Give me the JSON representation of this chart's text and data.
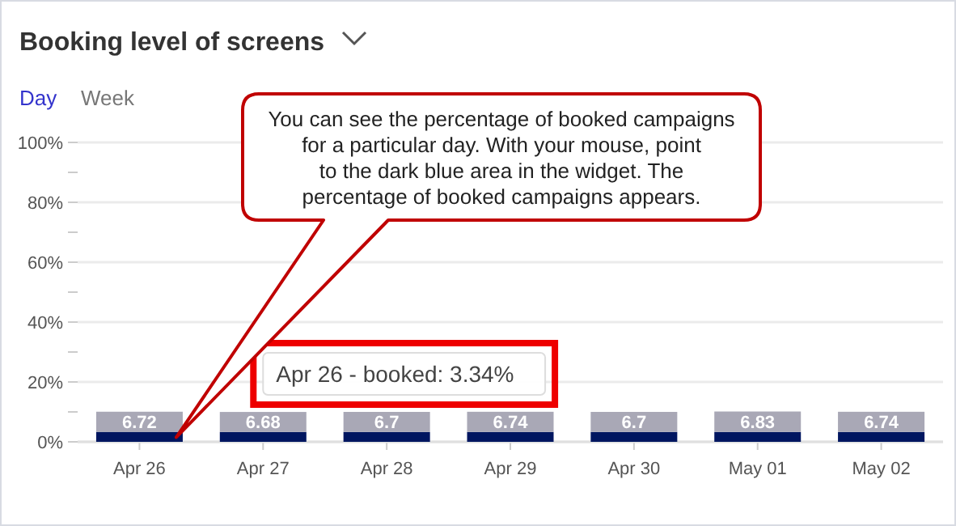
{
  "chart_data": {
    "type": "bar",
    "stacked": true,
    "title": "Booking level of screens",
    "categories": [
      "Apr 26",
      "Apr 27",
      "Apr 28",
      "Apr 29",
      "Apr 30",
      "May 01",
      "May 02"
    ],
    "series": [
      {
        "color": "#001660",
        "values": [
          3.34,
          3.3,
          3.3,
          3.3,
          3.3,
          3.3,
          3.3
        ]
      },
      {
        "color": "#a9a8b6",
        "values": [
          6.72,
          6.68,
          6.7,
          6.74,
          6.7,
          6.83,
          6.74
        ],
        "data_labels": true
      }
    ],
    "ylim": [
      0,
      100
    ],
    "yticks": [
      {
        "value": 0,
        "label": "0%"
      },
      {
        "value": 10,
        "label": null
      },
      {
        "value": 20,
        "label": "20%"
      },
      {
        "value": 30,
        "label": null
      },
      {
        "value": 40,
        "label": "40%"
      },
      {
        "value": 50,
        "label": null
      },
      {
        "value": 60,
        "label": "60%"
      },
      {
        "value": 70,
        "label": null
      },
      {
        "value": 80,
        "label": "80%"
      },
      {
        "value": 90,
        "label": null
      },
      {
        "value": 100,
        "label": "100%"
      }
    ],
    "grid": "y",
    "annotations": [
      "Day",
      "Week",
      "You can see the percentage of booked campaigns for a particular day. With your mouse, point to the dark blue area in the widget. The percentage of booked campaigns appears.",
      "Apr 26 - booked: 3.34%"
    ]
  }
}
